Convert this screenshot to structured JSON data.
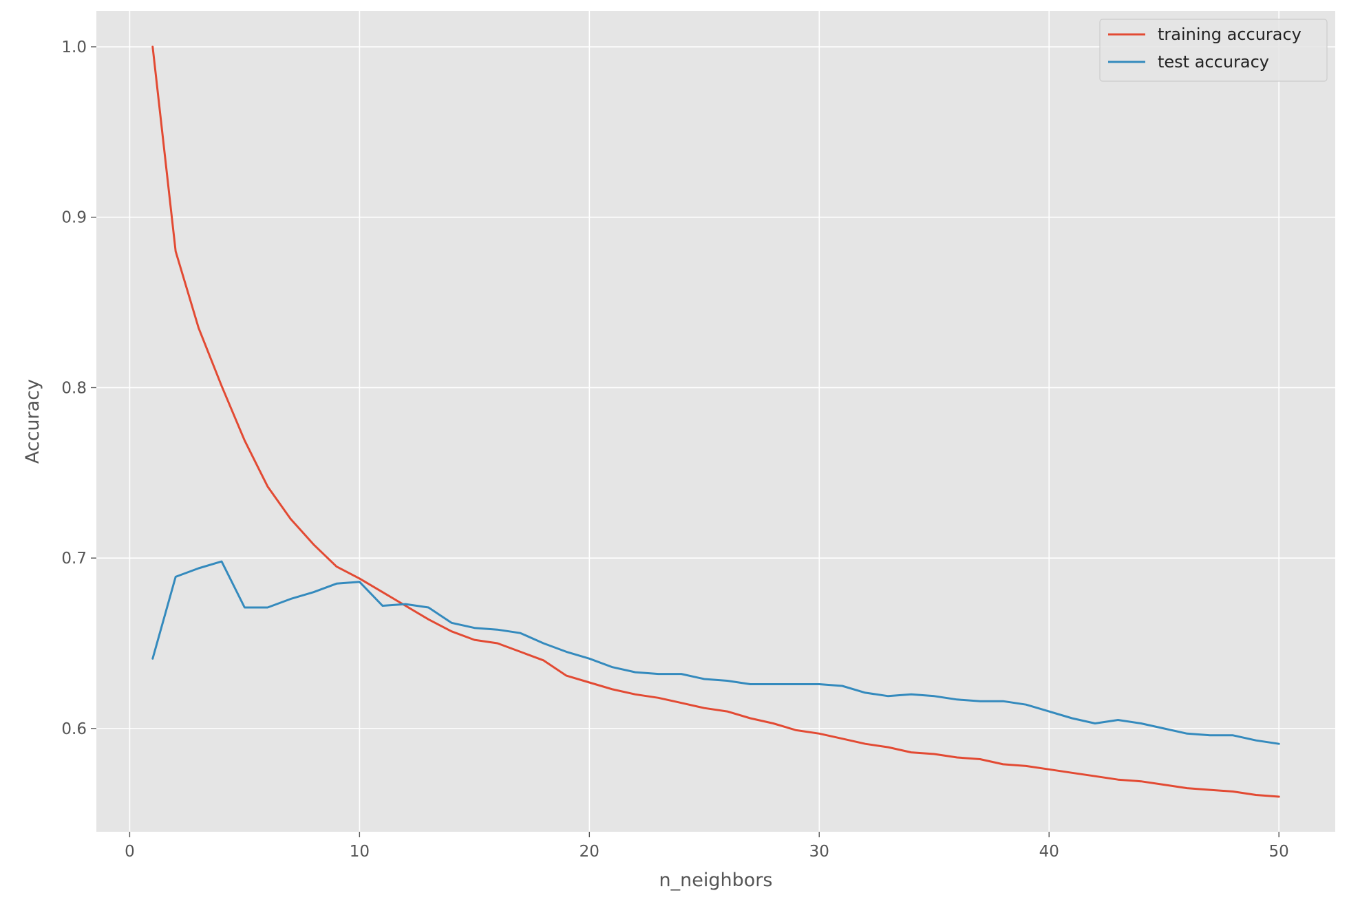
{
  "chart_data": {
    "type": "line",
    "title": "",
    "xlabel": "n_neighbors",
    "ylabel": "Accuracy",
    "xlim": [
      -1.45,
      52.45
    ],
    "ylim": [
      0.5394,
      1.021
    ],
    "x_ticks": [
      0,
      10,
      20,
      30,
      40,
      50
    ],
    "y_ticks": [
      0.6,
      0.7,
      0.8,
      0.9,
      1.0
    ],
    "x_tick_labels": [
      "0",
      "10",
      "20",
      "30",
      "40",
      "50"
    ],
    "y_tick_labels": [
      "0.6",
      "0.7",
      "0.8",
      "0.9",
      "1.0"
    ],
    "grid": true,
    "legend_position": "top-right",
    "x": [
      1,
      2,
      3,
      4,
      5,
      6,
      7,
      8,
      9,
      10,
      11,
      12,
      13,
      14,
      15,
      16,
      17,
      18,
      19,
      20,
      21,
      22,
      23,
      24,
      25,
      26,
      27,
      28,
      29,
      30,
      31,
      32,
      33,
      34,
      35,
      36,
      37,
      38,
      39,
      40,
      41,
      42,
      43,
      44,
      45,
      46,
      47,
      48,
      49,
      50
    ],
    "series": [
      {
        "name": "training accuracy",
        "color": "#E24A33",
        "values": [
          1.0,
          0.88,
          0.835,
          0.801,
          0.769,
          0.742,
          0.723,
          0.708,
          0.695,
          0.688,
          0.68,
          0.672,
          0.664,
          0.657,
          0.652,
          0.65,
          0.645,
          0.64,
          0.631,
          0.627,
          0.623,
          0.62,
          0.618,
          0.615,
          0.612,
          0.61,
          0.606,
          0.603,
          0.599,
          0.597,
          0.594,
          0.591,
          0.589,
          0.586,
          0.585,
          0.583,
          0.582,
          0.579,
          0.578,
          0.576,
          0.574,
          0.572,
          0.57,
          0.569,
          0.567,
          0.565,
          0.564,
          0.563,
          0.561,
          0.56
        ]
      },
      {
        "name": "test accuracy",
        "color": "#348ABD",
        "values": [
          0.641,
          0.689,
          0.694,
          0.698,
          0.671,
          0.671,
          0.676,
          0.68,
          0.685,
          0.686,
          0.672,
          0.673,
          0.671,
          0.662,
          0.659,
          0.658,
          0.656,
          0.65,
          0.645,
          0.641,
          0.636,
          0.633,
          0.632,
          0.632,
          0.629,
          0.628,
          0.626,
          0.626,
          0.626,
          0.626,
          0.625,
          0.621,
          0.619,
          0.62,
          0.619,
          0.617,
          0.616,
          0.616,
          0.614,
          0.61,
          0.606,
          0.603,
          0.605,
          0.603,
          0.6,
          0.597,
          0.596,
          0.596,
          0.593,
          0.591
        ]
      }
    ]
  }
}
